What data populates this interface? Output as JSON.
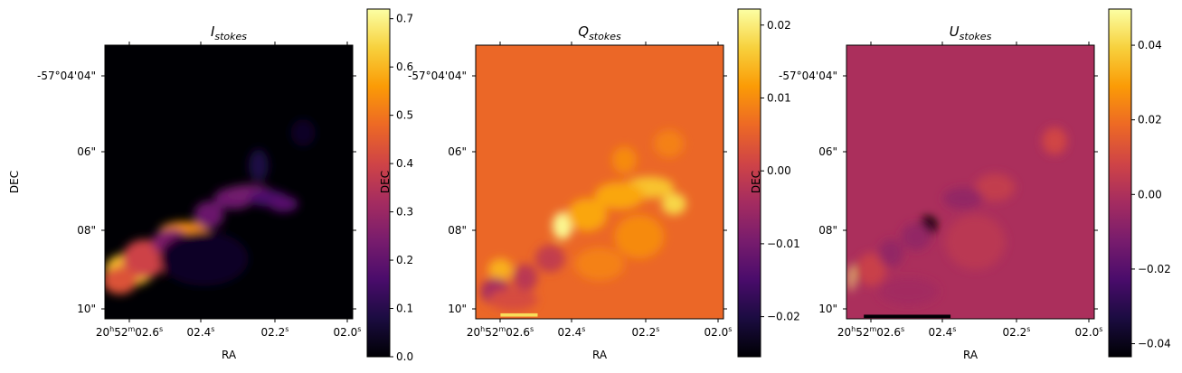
{
  "figure": {
    "colormap": "inferno",
    "colormap_stops": [
      "#000004",
      "#1b0c41",
      "#4a0c6b",
      "#781c6d",
      "#a52c60",
      "#cf4446",
      "#ed6925",
      "#fb9b06",
      "#f7d13d",
      "#fcffa4"
    ]
  },
  "chart_data": [
    {
      "type": "heatmap",
      "title": "I",
      "title_subscript": "stokes",
      "xlabel": "RA",
      "ylabel": "DEC",
      "x_ticks": [
        "20h52m02.6s",
        "02.4s",
        "02.2s",
        "02.0s"
      ],
      "y_ticks": [
        "-57°04'04\"",
        "06\"",
        "08\"",
        "10\""
      ],
      "colorbar": {
        "range": [
          0.0,
          0.72
        ],
        "ticks": [
          0.0,
          0.1,
          0.2,
          0.3,
          0.4,
          0.5,
          0.6,
          0.7
        ],
        "tick_labels": [
          "0.0",
          "0.1",
          "0.2",
          "0.3",
          "0.4",
          "0.5",
          "0.6",
          "0.7"
        ]
      }
    },
    {
      "type": "heatmap",
      "title": "Q",
      "title_subscript": "stokes",
      "xlabel": "RA",
      "ylabel": "DEC",
      "x_ticks": [
        "20h52m02.6s",
        "02.4s",
        "02.2s",
        "02.0s"
      ],
      "y_ticks": [
        "-57°04'04\"",
        "06\"",
        "08\"",
        "10\""
      ],
      "colorbar": {
        "range": [
          -0.0255,
          0.0222
        ],
        "ticks": [
          -0.02,
          -0.01,
          0.0,
          0.01,
          0.02
        ],
        "tick_labels": [
          "−0.02",
          "−0.01",
          "0.00",
          "0.01",
          "0.02"
        ]
      }
    },
    {
      "type": "heatmap",
      "title": "U",
      "title_subscript": "stokes",
      "xlabel": "RA",
      "ylabel": "DEC",
      "x_ticks": [
        "20h52m02.6s",
        "02.4s",
        "02.2s",
        "02.0s"
      ],
      "y_ticks": [
        "-57°04'04\"",
        "06\"",
        "08\"",
        "10\""
      ],
      "colorbar": {
        "range": [
          -0.0435,
          0.0497
        ],
        "ticks": [
          -0.04,
          -0.02,
          0.0,
          0.02,
          0.04
        ],
        "tick_labels": [
          "−0.04",
          "−0.02",
          "0.00",
          "0.02",
          "0.04"
        ]
      }
    }
  ]
}
